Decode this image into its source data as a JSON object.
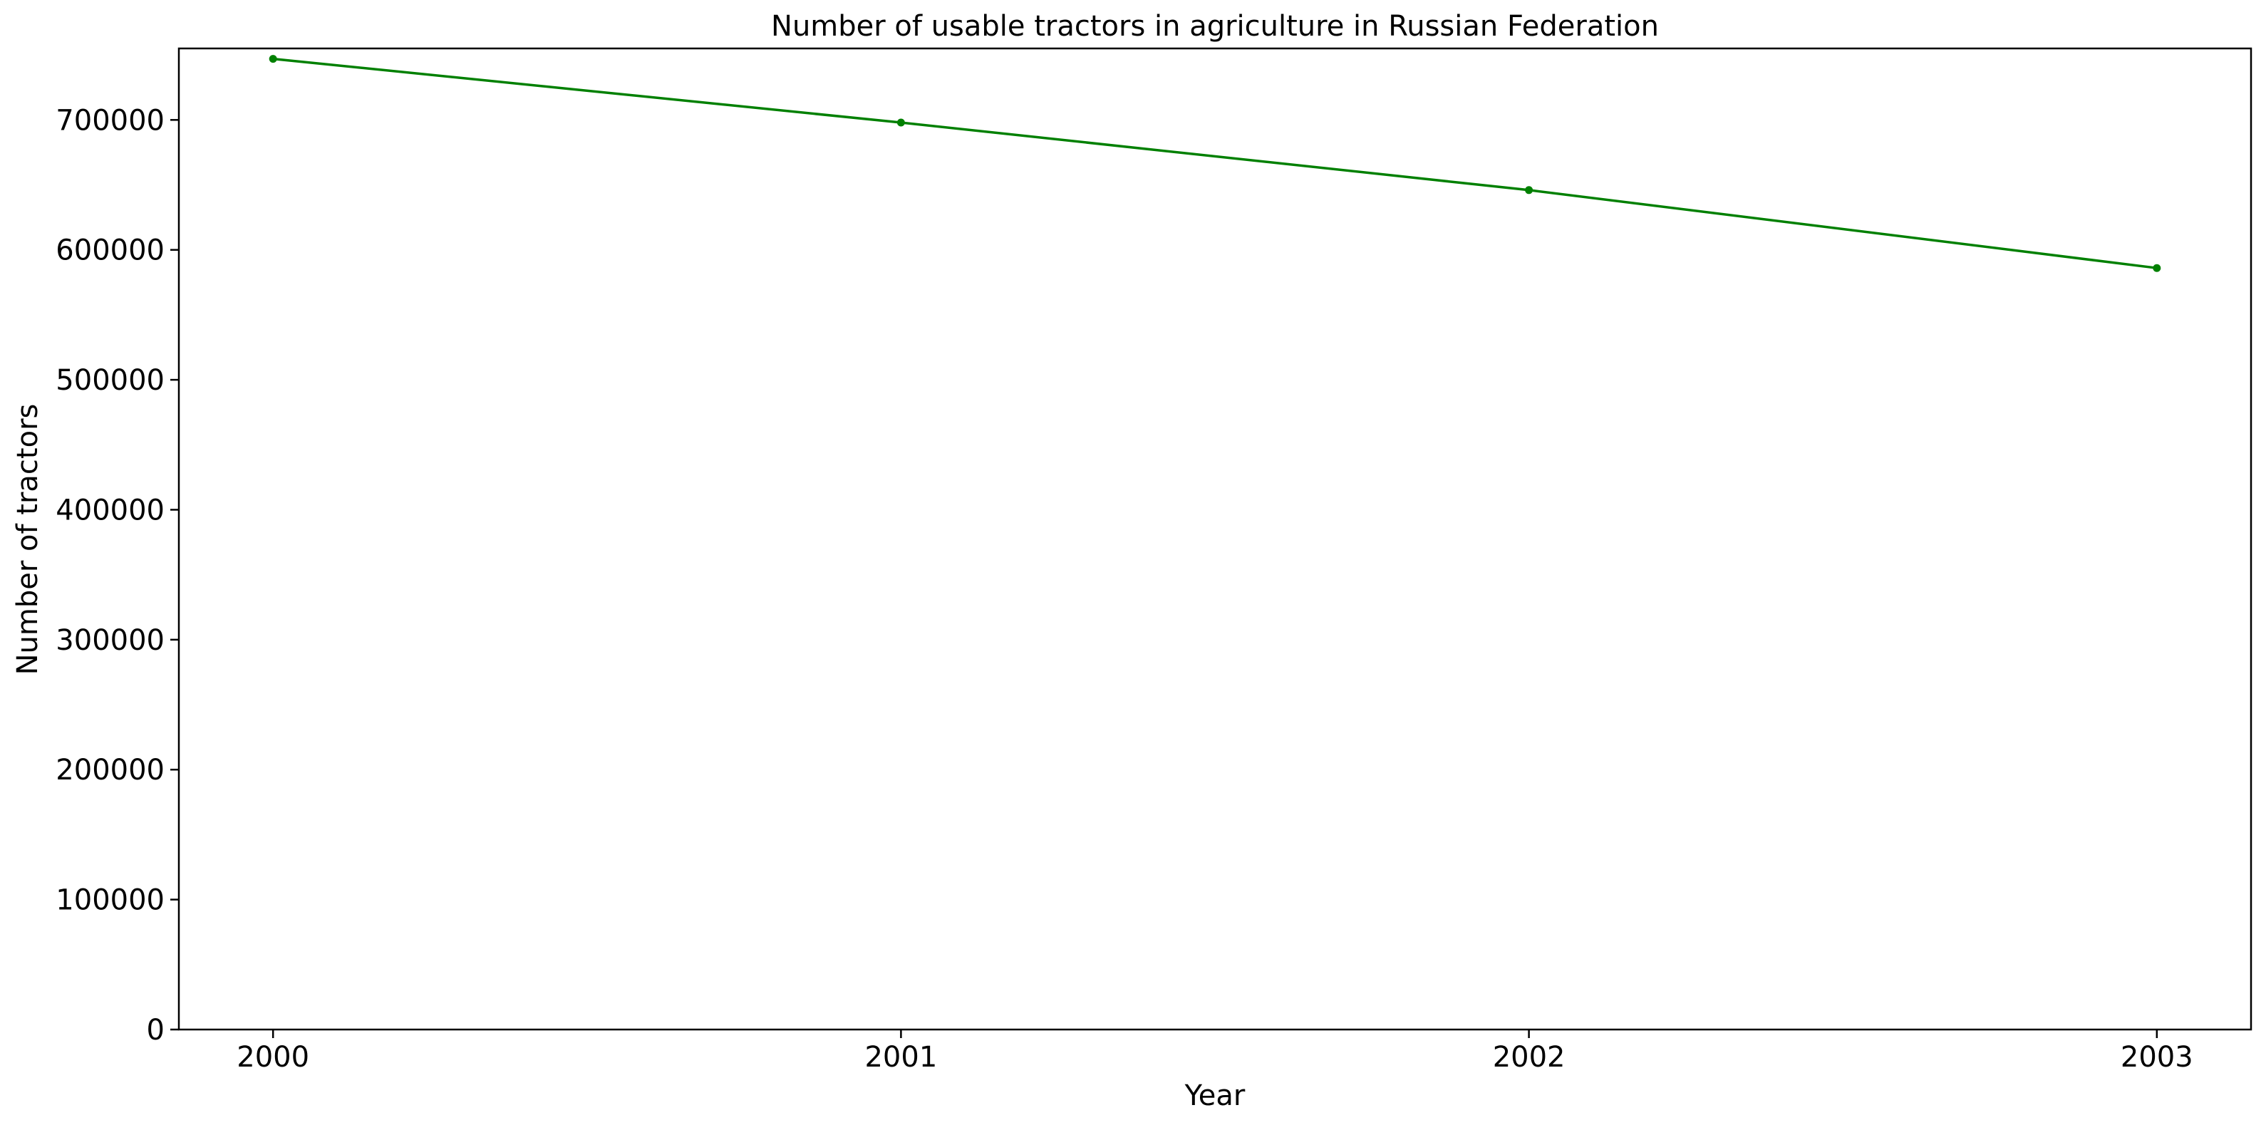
{
  "chart_data": {
    "type": "line",
    "title": "Number of usable tractors in agriculture in Russian Federation",
    "xlabel": "Year",
    "ylabel": "Number of tractors",
    "x": [
      2000,
      2001,
      2002,
      2003
    ],
    "x_tick_labels": [
      "2000",
      "2001",
      "2002",
      "2003"
    ],
    "series": [
      {
        "values": [
          747000,
          698000,
          646000,
          586000
        ],
        "color": "#008000",
        "marker": "dot"
      }
    ],
    "ylim": [
      0,
      755000
    ],
    "xlim": [
      1999.85,
      2003.15
    ],
    "y_ticks": [
      0,
      100000,
      200000,
      300000,
      400000,
      500000,
      600000,
      700000
    ],
    "y_tick_labels": [
      "0",
      "100000",
      "200000",
      "300000",
      "400000",
      "500000",
      "600000",
      "700000"
    ],
    "grid": false,
    "legend": "none"
  }
}
